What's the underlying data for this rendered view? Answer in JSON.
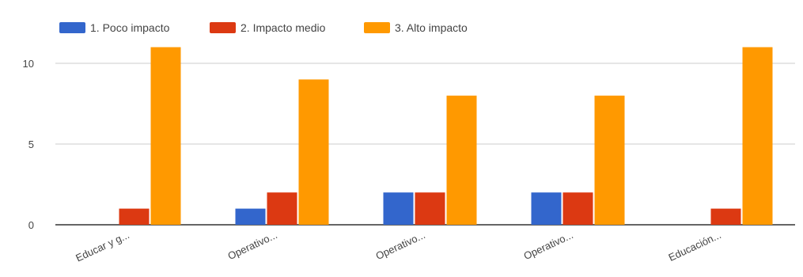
{
  "chart_data": {
    "type": "bar",
    "title": "",
    "xlabel": "",
    "ylabel": "",
    "categories": [
      "Educar y g...",
      "Operativo...",
      "Operativo...",
      "Operativo...",
      "Educación..."
    ],
    "series": [
      {
        "name": "1. Poco impacto",
        "color": "#3366cc",
        "values": [
          0,
          1,
          2,
          2,
          0
        ]
      },
      {
        "name": "2. Impacto medio",
        "color": "#dc3912",
        "values": [
          1,
          2,
          2,
          2,
          1
        ]
      },
      {
        "name": "3. Alto impacto",
        "color": "#ff9900",
        "values": [
          11,
          9,
          8,
          8,
          11
        ]
      }
    ],
    "ylim": [
      0,
      11
    ],
    "y_ticks": [
      0,
      5,
      10
    ],
    "grid": true,
    "legend_position": "top-left"
  }
}
